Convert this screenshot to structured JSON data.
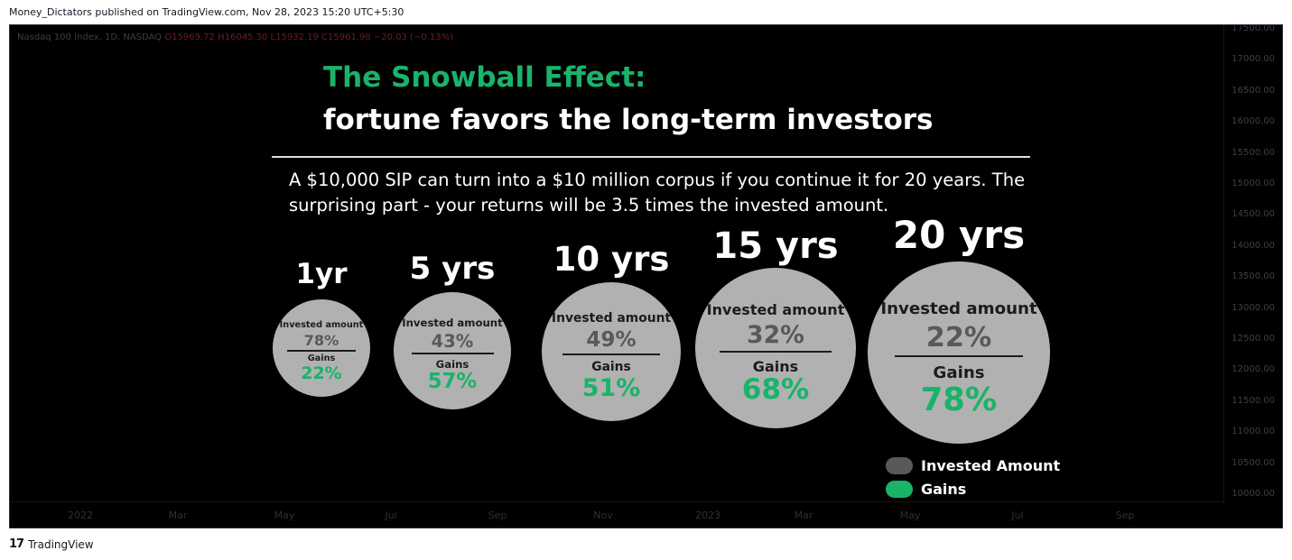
{
  "publisher_line": "Money_Dictators published on TradingView.com, Nov 28, 2023 15:20 UTC+5:30",
  "symbol_line": {
    "name": "Nasdaq 100 Index, 1D, NASDAQ",
    "o_label": "O",
    "o": "15969.72",
    "h_label": "H",
    "h": "16045.30",
    "l_label": "L",
    "l": "15932.19",
    "c_label": "C",
    "c": "15961.98",
    "change": "−20.03 (−0.13%)"
  },
  "price_axis": [
    "17500.00",
    "17000.00",
    "16500.00",
    "16000.00",
    "15500.00",
    "15000.00",
    "14500.00",
    "14000.00",
    "13500.00",
    "13000.00",
    "12500.00",
    "12000.00",
    "11500.00",
    "11000.00",
    "10500.00",
    "10000.00"
  ],
  "time_axis": [
    "2022",
    "Mar",
    "May",
    "Jul",
    "Sep",
    "Nov",
    "2023",
    "Mar",
    "May",
    "Jul",
    "Sep"
  ],
  "title_line1": "The Snowball Effect:",
  "title_line2": "fortune favors the long-term investors",
  "description": "A $10,000 SIP can turn into a $10 million corpus if you continue it for 20 years. The surprising part - your returns will be 3.5 times the invested amount.",
  "labels": {
    "invested": "Invested amount",
    "gains": "Gains"
  },
  "legend": {
    "invested": "Invested Amount",
    "gains": "Gains"
  },
  "colors": {
    "invested": "#595959",
    "gains": "#19b36a",
    "bubble": "#b1b1b1",
    "title_accent": "#19b36a",
    "background": "#000000"
  },
  "chart_data": {
    "type": "bubble",
    "title": "The Snowball Effect:",
    "subtitle": "fortune favors the long-term investors",
    "categories": [
      "1yr",
      "5 yrs",
      "10 yrs",
      "15 yrs",
      "20 yrs"
    ],
    "series": [
      {
        "name": "Invested Amount",
        "values": [
          78,
          43,
          49,
          32,
          22
        ],
        "value_labels": [
          "78%",
          "43%",
          "49%",
          "32%",
          "22%"
        ]
      },
      {
        "name": "Gains",
        "values": [
          22,
          57,
          51,
          68,
          78
        ],
        "value_labels": [
          "22%",
          "57%",
          "51%",
          "68%",
          "78%"
        ]
      }
    ],
    "legend_position": "bottom-right"
  },
  "footer_brand": "TradingView",
  "footer_logo_text": "17"
}
